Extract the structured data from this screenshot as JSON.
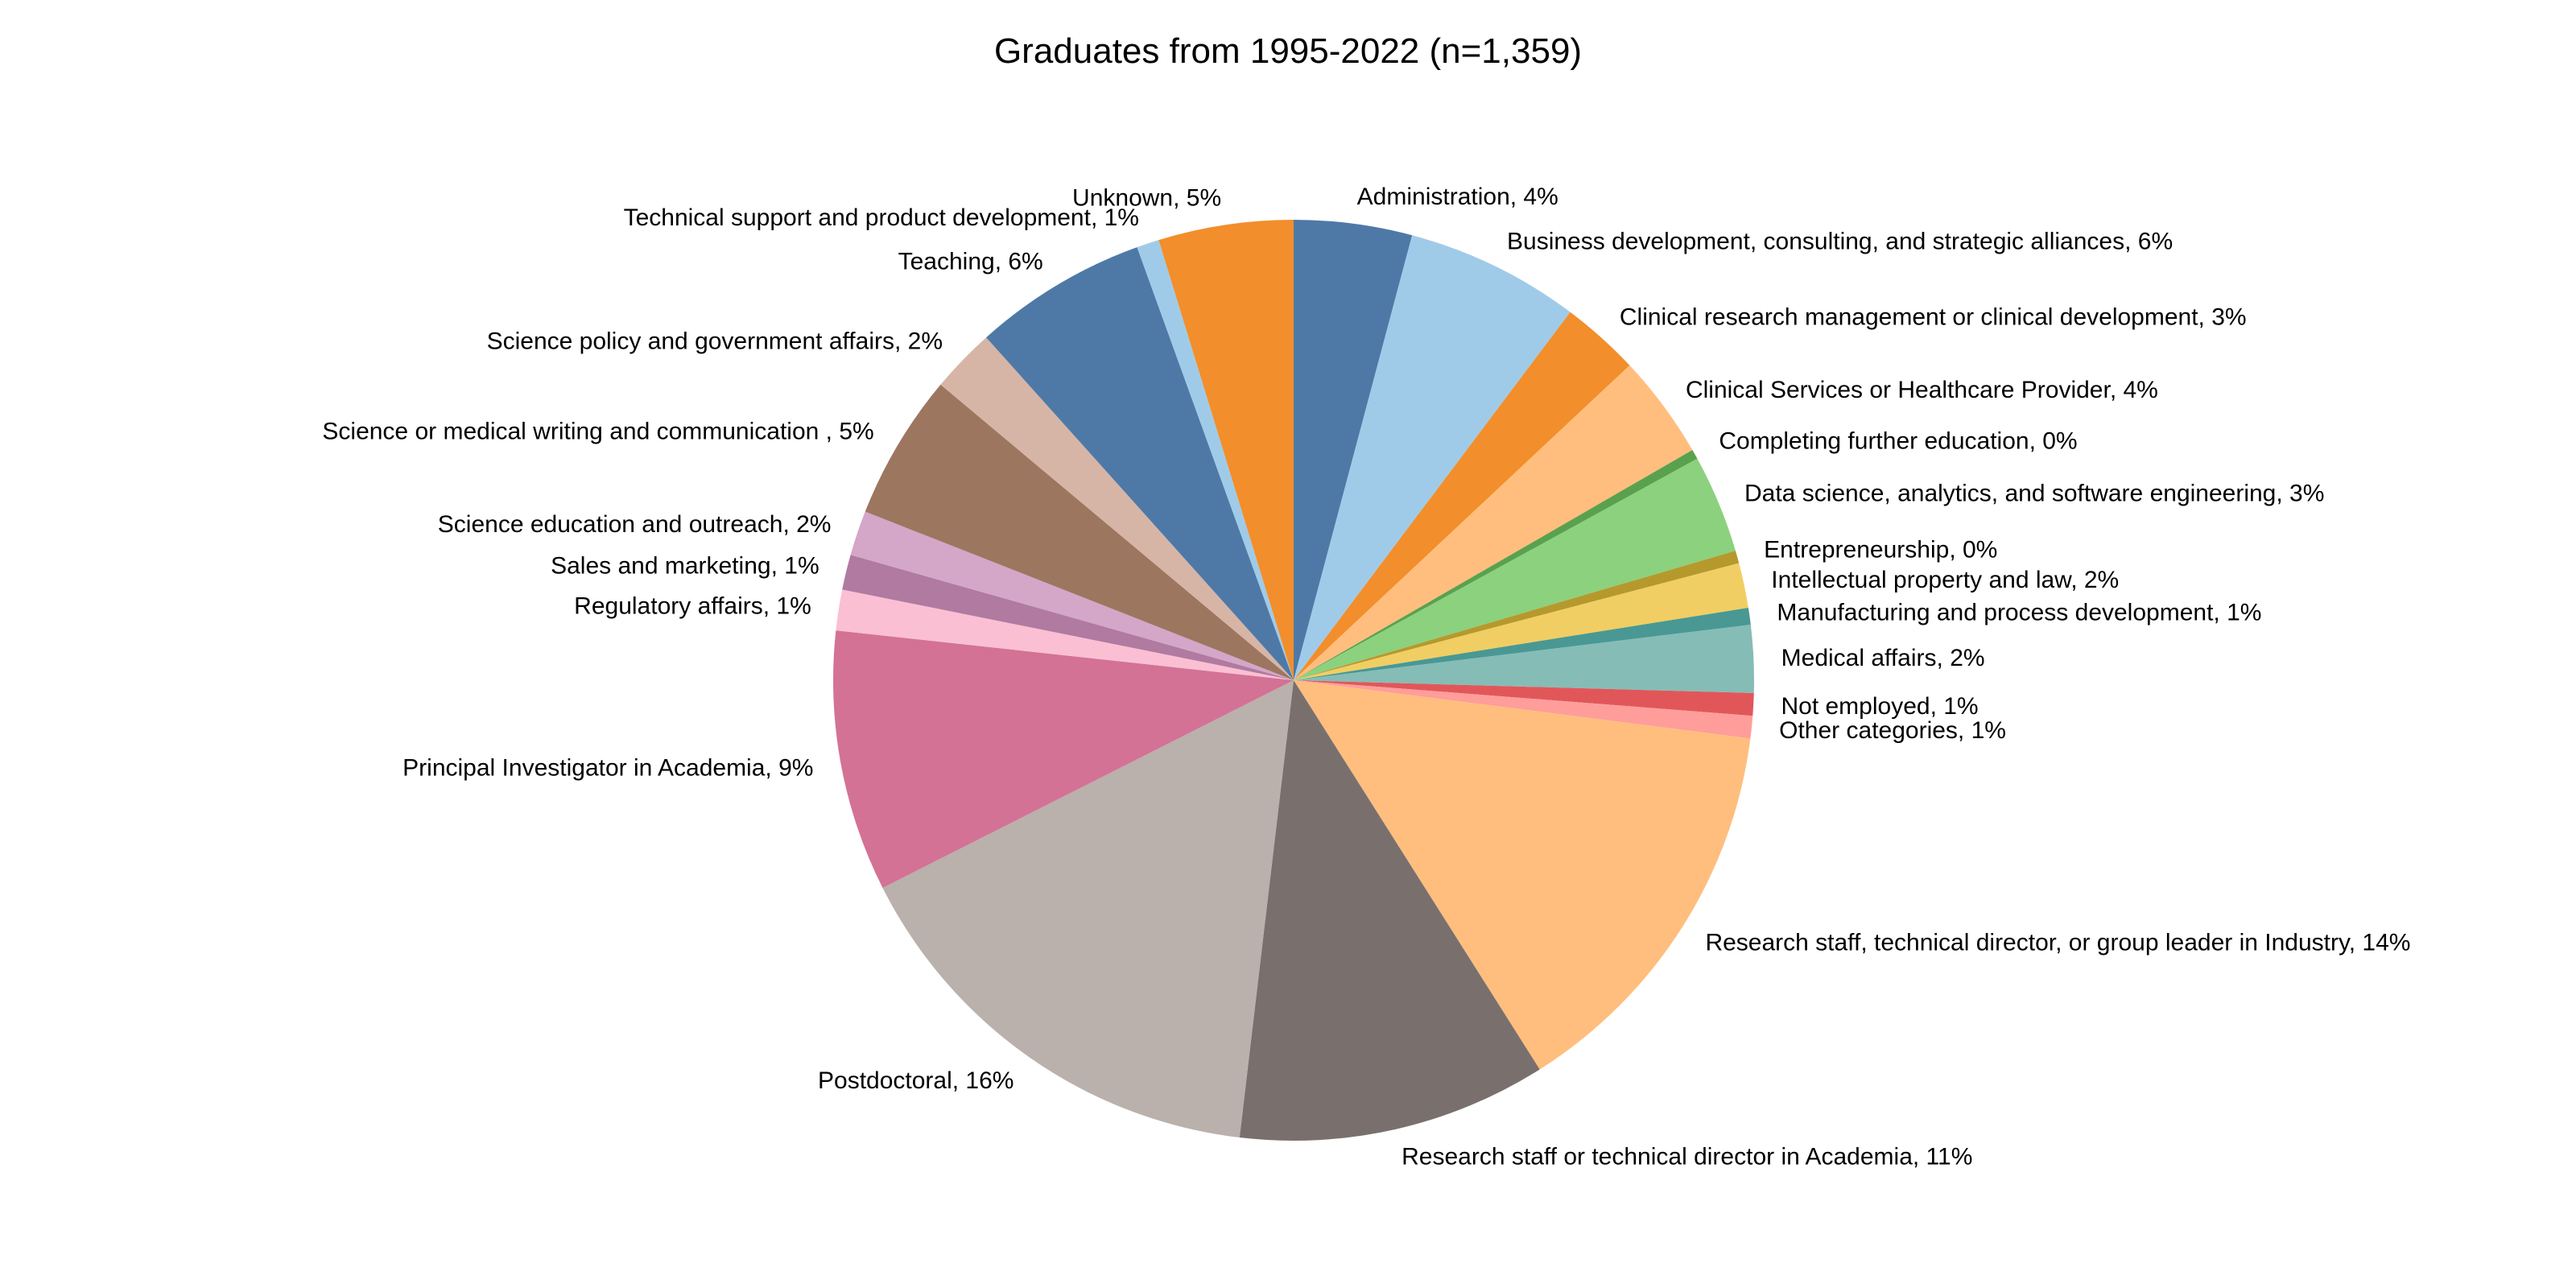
{
  "chart_data": {
    "type": "pie",
    "title": "Graduates from 1995-2022 (n=1,359)",
    "start_angle_deg": 90,
    "direction": "clockwise",
    "legend": "none",
    "slices": [
      {
        "label": "Administration, 4%",
        "value": 4.2,
        "color": "#4e79a7"
      },
      {
        "label": "Business development, consulting, and strategic alliances, 6%",
        "value": 6.2,
        "color": "#a0cbe8"
      },
      {
        "label": "Clinical research management or clinical development, 3%",
        "value": 2.8,
        "color": "#f28e2b"
      },
      {
        "label": "Clinical Services or Healthcare Provider, 4%",
        "value": 3.7,
        "color": "#ffbe7d"
      },
      {
        "label": "Completing further education, 0%",
        "value": 0.35,
        "color": "#59a14f"
      },
      {
        "label": "Data science, analytics, and software engineering, 3%",
        "value": 3.5,
        "color": "#8cd17d"
      },
      {
        "label": "Entrepreneurship, 0%",
        "value": 0.45,
        "color": "#b6992d"
      },
      {
        "label": "Intellectual property and law, 2%",
        "value": 1.6,
        "color": "#f1ce63"
      },
      {
        "label": "Manufacturing and process development, 1%",
        "value": 0.6,
        "color": "#499894"
      },
      {
        "label": "Medical affairs, 2%",
        "value": 2.4,
        "color": "#86bcb6"
      },
      {
        "label": "Not employed, 1%",
        "value": 0.8,
        "color": "#e15759"
      },
      {
        "label": "Other categories, 1%",
        "value": 0.8,
        "color": "#ff9d9a"
      },
      {
        "label": "Research staff, technical director, or group leader in Industry, 14%",
        "value": 14.2,
        "color": "#ffbe7d"
      },
      {
        "label": "Research staff or technical director in Academia, 11%",
        "value": 11.0,
        "color": "#79706e"
      },
      {
        "label": "Postdoctoral, 16%",
        "value": 15.9,
        "color": "#bab0ac"
      },
      {
        "label": "Principal Investigator in Academia, 9%",
        "value": 9.3,
        "color": "#d37295"
      },
      {
        "label": "Regulatory affairs, 1%",
        "value": 1.45,
        "color": "#fabfd2"
      },
      {
        "label": "Sales and marketing, 1%",
        "value": 1.25,
        "color": "#b07aa1"
      },
      {
        "label": "Science education and outreach, 2%",
        "value": 1.6,
        "color": "#d4a6c8"
      },
      {
        "label": "Science or medical writing and communication , 5%",
        "value": 5.2,
        "color": "#9d7660"
      },
      {
        "label": "Science policy and government affairs, 2%",
        "value": 2.3,
        "color": "#d7b5a6"
      },
      {
        "label": "Teaching, 6%",
        "value": 6.2,
        "color": "#4e79a7"
      },
      {
        "label": "Technical support and product development, 1%",
        "value": 0.8,
        "color": "#a0cbe8"
      },
      {
        "label": "Unknown, 5%",
        "value": 4.8,
        "color": "#f28e2b"
      }
    ]
  }
}
